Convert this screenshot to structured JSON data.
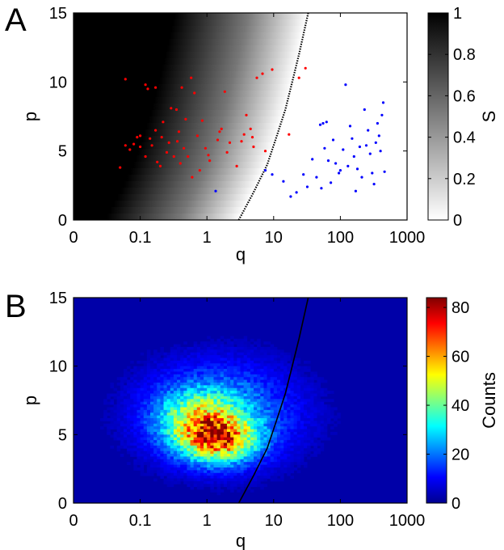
{
  "chart_data": [
    {
      "type": "heatmap",
      "panel_label": "A",
      "xlabel": "q",
      "ylabel": "p",
      "x_scale": "log",
      "x_ticks": [
        0,
        0.1,
        1,
        10,
        100,
        1000
      ],
      "x_tick_labels": [
        "0",
        "0.1",
        "1",
        "10",
        "100",
        "1000"
      ],
      "y_ticks": [
        0,
        5,
        10,
        15
      ],
      "y_tick_labels": [
        "0",
        "5",
        "10",
        "15"
      ],
      "xlim": [
        0,
        1000
      ],
      "ylim": [
        0,
        15
      ],
      "colorbar": {
        "label": "S",
        "range": [
          0,
          1
        ],
        "ticks": [
          0,
          0.2,
          0.4,
          0.6,
          0.8,
          1
        ],
        "tick_labels": [
          "0",
          "0.2",
          "0.4",
          "0.6",
          "0.8",
          "1"
        ],
        "colormap": "gray-reversed"
      },
      "boundary_curve": {
        "style": "dotted",
        "color": "#000000",
        "points": [
          [
            3,
            0
          ],
          [
            5,
            2
          ],
          [
            8,
            4
          ],
          [
            11,
            6
          ],
          [
            15,
            8
          ],
          [
            19,
            10
          ],
          [
            24,
            12
          ],
          [
            33,
            15
          ]
        ]
      },
      "series": [
        {
          "color": "#ff0000",
          "points": [
            [
              0.05,
              3.8
            ],
            [
              0.06,
              10.2
            ],
            [
              0.06,
              5.4
            ],
            [
              0.07,
              5.1
            ],
            [
              0.08,
              5.5
            ],
            [
              0.09,
              6.0
            ],
            [
              0.1,
              6.1
            ],
            [
              0.1,
              5.3
            ],
            [
              0.12,
              9.8
            ],
            [
              0.12,
              4.6
            ],
            [
              0.13,
              9.5
            ],
            [
              0.14,
              5.9
            ],
            [
              0.15,
              5.4
            ],
            [
              0.17,
              9.6
            ],
            [
              0.17,
              6.5
            ],
            [
              0.18,
              4.2
            ],
            [
              0.2,
              3.9
            ],
            [
              0.21,
              6.0
            ],
            [
              0.22,
              7.1
            ],
            [
              0.25,
              4.9
            ],
            [
              0.27,
              5.6
            ],
            [
              0.29,
              8.1
            ],
            [
              0.32,
              4.6
            ],
            [
              0.35,
              8.0
            ],
            [
              0.36,
              5.7
            ],
            [
              0.38,
              6.4
            ],
            [
              0.4,
              4.1
            ],
            [
              0.42,
              9.6
            ],
            [
              0.45,
              5.2
            ],
            [
              0.48,
              7.3
            ],
            [
              0.52,
              4.6
            ],
            [
              0.58,
              10.3
            ],
            [
              0.6,
              3.1
            ],
            [
              0.65,
              9.2
            ],
            [
              0.72,
              6.1
            ],
            [
              0.78,
              3.6
            ],
            [
              0.85,
              7.2
            ],
            [
              0.95,
              5.2
            ],
            [
              1.05,
              4.7
            ],
            [
              1.1,
              4.3
            ],
            [
              1.45,
              5.8
            ],
            [
              1.55,
              6.4
            ],
            [
              1.65,
              6.6
            ],
            [
              1.85,
              9.3
            ],
            [
              2.0,
              4.9
            ],
            [
              2.2,
              5.6
            ],
            [
              2.8,
              3.9
            ],
            [
              3.3,
              5.7
            ],
            [
              3.6,
              6.2
            ],
            [
              3.9,
              7.6
            ],
            [
              4.5,
              6.6
            ],
            [
              4.8,
              6.0
            ],
            [
              5.0,
              5.3
            ],
            [
              5.6,
              10.3
            ],
            [
              6.8,
              10.6
            ],
            [
              7.5,
              5.0
            ],
            [
              9.5,
              10.9
            ],
            [
              17.0,
              6.2
            ],
            [
              24.0,
              10.3
            ],
            [
              30.0,
              11.0
            ]
          ]
        },
        {
          "color": "#0000ff",
          "points": [
            [
              1.35,
              2.1
            ],
            [
              7.5,
              3.6
            ],
            [
              9.5,
              3.3
            ],
            [
              14.0,
              2.8
            ],
            [
              18.0,
              1.7
            ],
            [
              22.0,
              2.0
            ],
            [
              28.0,
              3.3
            ],
            [
              32.0,
              2.4
            ],
            [
              38.0,
              4.4
            ],
            [
              44.0,
              3.1
            ],
            [
              50.0,
              6.9
            ],
            [
              52.0,
              2.3
            ],
            [
              55.0,
              7.0
            ],
            [
              58.0,
              5.2
            ],
            [
              62.0,
              7.1
            ],
            [
              66.0,
              4.3
            ],
            [
              72.0,
              2.7
            ],
            [
              78.0,
              5.8
            ],
            [
              85.0,
              4.1
            ],
            [
              95.0,
              3.4
            ],
            [
              100.0,
              3.6
            ],
            [
              110.0,
              5.1
            ],
            [
              120.0,
              9.8
            ],
            [
              130.0,
              3.9
            ],
            [
              140.0,
              6.8
            ],
            [
              150.0,
              5.9
            ],
            [
              160.0,
              4.6
            ],
            [
              170.0,
              2.1
            ],
            [
              180.0,
              3.7
            ],
            [
              195.0,
              5.3
            ],
            [
              210.0,
              3.1
            ],
            [
              230.0,
              8.0
            ],
            [
              245.0,
              5.4
            ],
            [
              260.0,
              6.5
            ],
            [
              280.0,
              4.8
            ],
            [
              300.0,
              3.4
            ],
            [
              320.0,
              2.6
            ],
            [
              340.0,
              5.6
            ],
            [
              360.0,
              7.0
            ],
            [
              380.0,
              6.1
            ],
            [
              400.0,
              5.0
            ],
            [
              420.0,
              7.6
            ],
            [
              440.0,
              8.5
            ],
            [
              460.0,
              3.5
            ]
          ]
        }
      ]
    },
    {
      "type": "heatmap",
      "panel_label": "B",
      "xlabel": "q",
      "ylabel": "p",
      "x_scale": "log",
      "x_ticks": [
        0,
        0.1,
        1,
        10,
        100,
        1000
      ],
      "x_tick_labels": [
        "0",
        "0.1",
        "1",
        "10",
        "100",
        "1000"
      ],
      "y_ticks": [
        0,
        5,
        10,
        15
      ],
      "y_tick_labels": [
        "0",
        "5",
        "10",
        "15"
      ],
      "xlim": [
        0,
        1000
      ],
      "ylim": [
        0,
        15
      ],
      "colorbar": {
        "label": "Counts",
        "range": [
          0,
          84
        ],
        "ticks": [
          0,
          20,
          40,
          60,
          80
        ],
        "tick_labels": [
          "0",
          "20",
          "40",
          "60",
          "80"
        ],
        "colormap": "jet"
      },
      "density_peaks": [
        {
          "q": 1.5,
          "p": 4.6,
          "max_count": 84,
          "note_free": true
        },
        {
          "q": 0.8,
          "p": 6.2,
          "max_count": 62,
          "note_free": true
        }
      ],
      "boundary_curve": {
        "style": "solid",
        "color": "#000000",
        "points": [
          [
            3,
            0
          ],
          [
            5,
            2
          ],
          [
            8,
            4
          ],
          [
            11,
            6
          ],
          [
            15,
            8
          ],
          [
            19,
            10
          ],
          [
            24,
            12
          ],
          [
            33,
            15
          ]
        ]
      }
    }
  ]
}
